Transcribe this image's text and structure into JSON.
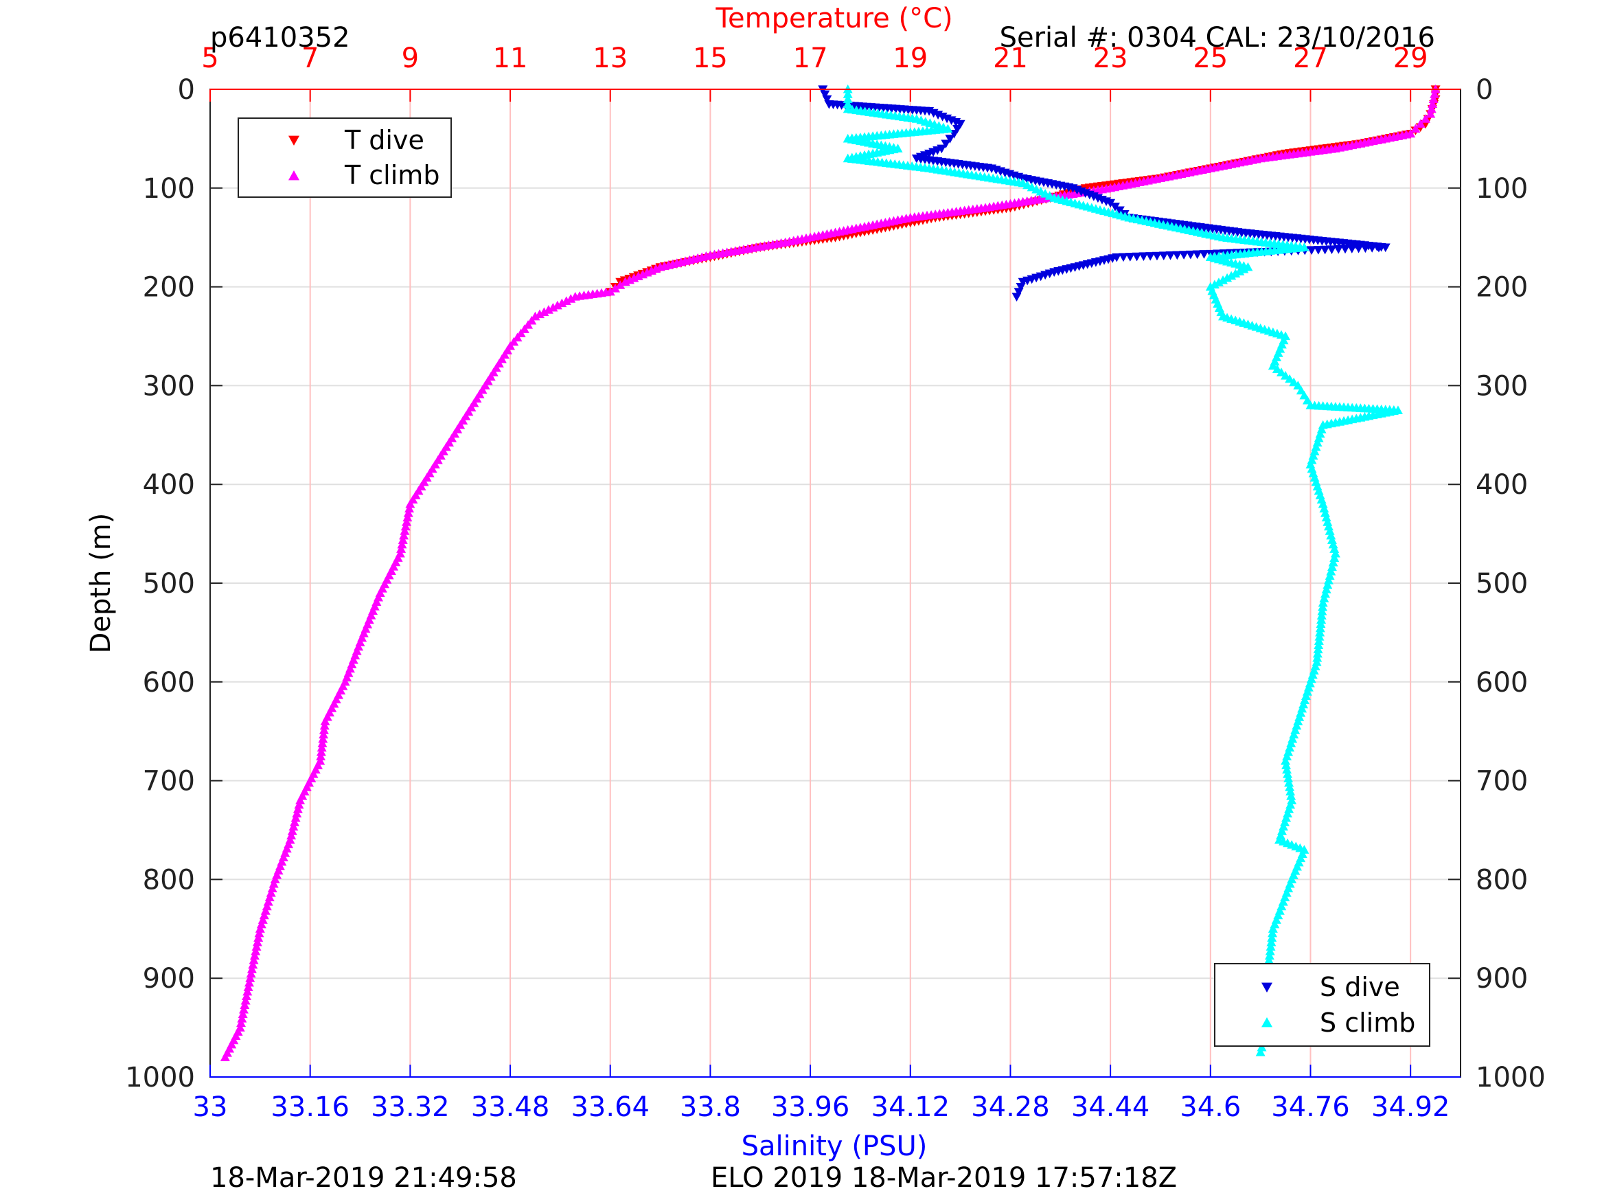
{
  "header": {
    "profile_id": "p6410352",
    "serial_cal": "Serial #: 0304  CAL: 23/10/2016"
  },
  "footer": {
    "left_timestamp": "18-Mar-2019 21:49:58",
    "right_info": "ELO 2019 18-Mar-2019 17:57:18Z"
  },
  "colors": {
    "t_dive": "#ff0000",
    "t_climb": "#ff00ff",
    "s_dive": "#0000dd",
    "s_climb": "#00ffff",
    "temp_axis": "#ff0000",
    "sal_axis": "#0000ff",
    "grid": "#e0e0e0",
    "temp_grid": "#ffc0c0"
  },
  "chart_data": {
    "type": "scatter",
    "ylabel": "Depth (m)",
    "y_reversed": true,
    "ylim": [
      0,
      1000
    ],
    "yticks": [
      0,
      100,
      200,
      300,
      400,
      500,
      600,
      700,
      800,
      900,
      1000
    ],
    "x_top": {
      "label": "Temperature (°C)",
      "lim": [
        5,
        30
      ],
      "ticks": [
        5,
        7,
        9,
        11,
        13,
        15,
        17,
        19,
        21,
        23,
        25,
        27,
        29
      ]
    },
    "x_bottom": {
      "label": "Salinity (PSU)",
      "lim": [
        33,
        35
      ],
      "ticks": [
        "33",
        "33.16",
        "33.32",
        "33.48",
        "33.64",
        "33.8",
        "33.96",
        "34.12",
        "34.28",
        "34.44",
        "34.6",
        "34.76",
        "34.92"
      ]
    },
    "grid": true,
    "legends": [
      {
        "position": "top-left",
        "entries": [
          "T dive",
          "T climb"
        ]
      },
      {
        "position": "bottom-right",
        "entries": [
          "S dive",
          "S climb"
        ]
      }
    ],
    "series": [
      {
        "name": "T dive",
        "axis": "temperature",
        "marker": "triangle-down",
        "points": [
          [
            29.5,
            0
          ],
          [
            29.5,
            10
          ],
          [
            29.4,
            25
          ],
          [
            29.3,
            35
          ],
          [
            29,
            45
          ],
          [
            28,
            55
          ],
          [
            26.5,
            65
          ],
          [
            25,
            80
          ],
          [
            24,
            90
          ],
          [
            22.5,
            100
          ],
          [
            21.8,
            110
          ],
          [
            21,
            120
          ],
          [
            19.5,
            130
          ],
          [
            18.5,
            140
          ],
          [
            17.5,
            150
          ],
          [
            16,
            160
          ],
          [
            15,
            170
          ],
          [
            14,
            180
          ],
          [
            13.2,
            195
          ],
          [
            13,
            205
          ]
        ]
      },
      {
        "name": "T climb",
        "axis": "temperature",
        "marker": "triangle-up",
        "points": [
          [
            29.5,
            0
          ],
          [
            29.4,
            25
          ],
          [
            29,
            45
          ],
          [
            27.5,
            60
          ],
          [
            26,
            70
          ],
          [
            24.5,
            85
          ],
          [
            23,
            100
          ],
          [
            21.5,
            112
          ],
          [
            20.5,
            120
          ],
          [
            19,
            130
          ],
          [
            18,
            140
          ],
          [
            16.5,
            155
          ],
          [
            15,
            168
          ],
          [
            14,
            180
          ],
          [
            13.3,
            195
          ],
          [
            13,
            205
          ],
          [
            12.3,
            210
          ],
          [
            11.5,
            230
          ],
          [
            11,
            260
          ],
          [
            10.5,
            300
          ],
          [
            10,
            340
          ],
          [
            9.5,
            380
          ],
          [
            9,
            420
          ],
          [
            8.8,
            470
          ],
          [
            8.4,
            510
          ],
          [
            8,
            560
          ],
          [
            7.7,
            600
          ],
          [
            7.3,
            640
          ],
          [
            7.2,
            680
          ],
          [
            6.8,
            720
          ],
          [
            6.6,
            760
          ],
          [
            6.3,
            800
          ],
          [
            6,
            850
          ],
          [
            5.8,
            900
          ],
          [
            5.6,
            950
          ],
          [
            5.3,
            980
          ]
        ]
      },
      {
        "name": "S dive",
        "axis": "salinity",
        "marker": "triangle-down",
        "points": [
          [
            33.98,
            0
          ],
          [
            33.99,
            15
          ],
          [
            34.15,
            22
          ],
          [
            34.2,
            35
          ],
          [
            34.19,
            45
          ],
          [
            34.17,
            60
          ],
          [
            34.13,
            70
          ],
          [
            34.25,
            80
          ],
          [
            34.3,
            90
          ],
          [
            34.38,
            100
          ],
          [
            34.44,
            115
          ],
          [
            34.47,
            130
          ],
          [
            34.65,
            145
          ],
          [
            34.88,
            160
          ],
          [
            34.45,
            170
          ],
          [
            34.35,
            185
          ],
          [
            34.3,
            195
          ],
          [
            34.29,
            210
          ]
        ]
      },
      {
        "name": "S climb",
        "axis": "salinity",
        "marker": "triangle-up",
        "points": [
          [
            34.02,
            0
          ],
          [
            34.02,
            20
          ],
          [
            34.13,
            30
          ],
          [
            34.18,
            40
          ],
          [
            34.02,
            50
          ],
          [
            34.1,
            60
          ],
          [
            34.02,
            70
          ],
          [
            34.15,
            80
          ],
          [
            34.3,
            95
          ],
          [
            34.35,
            110
          ],
          [
            34.47,
            130
          ],
          [
            34.62,
            150
          ],
          [
            34.75,
            160
          ],
          [
            34.6,
            170
          ],
          [
            34.66,
            180
          ],
          [
            34.6,
            200
          ],
          [
            34.62,
            230
          ],
          [
            34.72,
            250
          ],
          [
            34.7,
            280
          ],
          [
            34.74,
            300
          ],
          [
            34.76,
            320
          ],
          [
            34.9,
            325
          ],
          [
            34.78,
            340
          ],
          [
            34.76,
            380
          ],
          [
            34.78,
            420
          ],
          [
            34.8,
            470
          ],
          [
            34.78,
            520
          ],
          [
            34.77,
            580
          ],
          [
            34.74,
            640
          ],
          [
            34.72,
            680
          ],
          [
            34.73,
            720
          ],
          [
            34.71,
            760
          ],
          [
            34.75,
            770
          ],
          [
            34.73,
            800
          ],
          [
            34.7,
            850
          ],
          [
            34.69,
            900
          ],
          [
            34.69,
            950
          ],
          [
            34.68,
            975
          ]
        ]
      }
    ]
  }
}
